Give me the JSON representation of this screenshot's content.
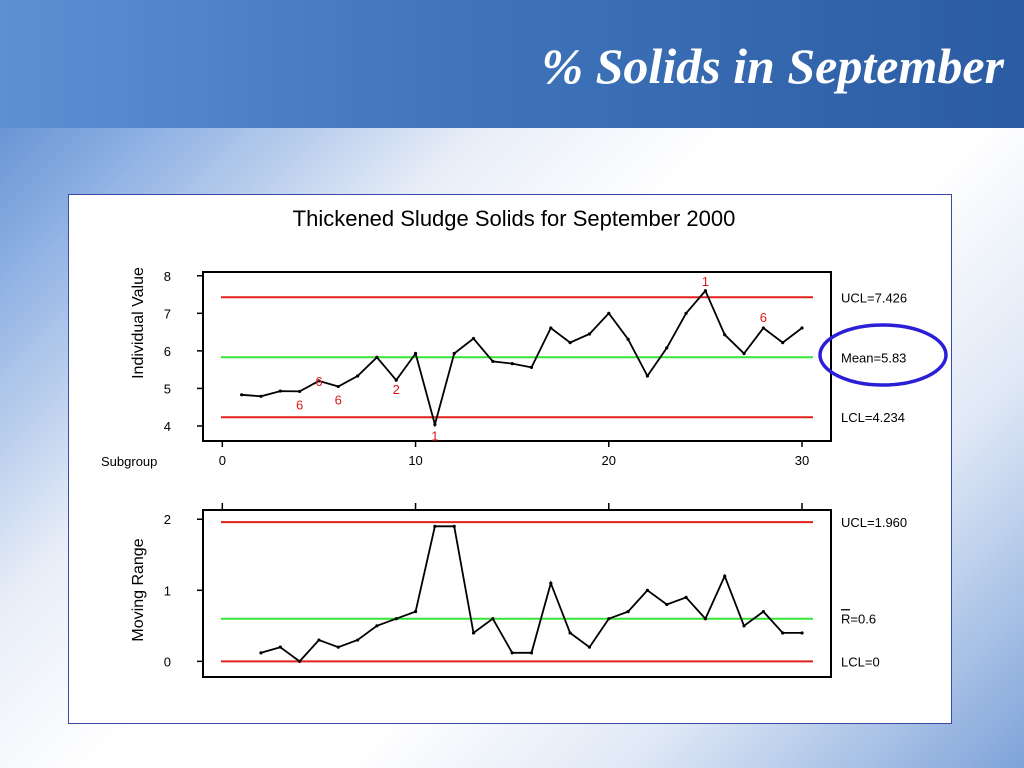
{
  "slide": {
    "title": "% Solids in September"
  },
  "colors": {
    "banner": "#3f74bb",
    "limit_line": "#e0201c",
    "center_line": "#33e633",
    "data_line": "#000000",
    "highlight_circle": "#2a1fd6",
    "flag_text": "#d91a1a"
  },
  "chart_data": [
    {
      "type": "line",
      "title": "Thickened Sludge Solids for September 2000",
      "ylabel": "Individual Value",
      "xlabel": "Subgroup",
      "xlim": [
        -1,
        31.5
      ],
      "ylim": [
        3.6,
        8.1
      ],
      "x_ticks": [
        0,
        10,
        20,
        30
      ],
      "y_ticks": [
        4,
        5,
        6,
        7,
        8
      ],
      "series": [
        {
          "x": [
            1,
            2,
            3,
            4,
            5,
            6,
            7,
            8,
            9,
            10,
            11,
            12,
            13,
            14,
            15,
            16,
            17,
            18,
            19,
            20,
            21,
            22,
            23,
            24,
            25,
            26,
            27,
            28,
            29,
            30
          ],
          "values": [
            4.83,
            4.79,
            4.93,
            4.92,
            5.2,
            5.05,
            5.33,
            5.83,
            5.22,
            5.93,
            4.04,
            5.93,
            6.33,
            5.72,
            5.66,
            5.56,
            6.61,
            6.22,
            6.45,
            7.0,
            6.31,
            5.33,
            6.08,
            7.0,
            7.6,
            6.43,
            5.93,
            6.61,
            6.22,
            6.61
          ]
        }
      ],
      "reference_lines": [
        {
          "label": "UCL=7.426",
          "value": 7.426,
          "color": "red"
        },
        {
          "label": "Mean=5.83",
          "value": 5.83,
          "color": "green"
        },
        {
          "label": "LCL=4.234",
          "value": 4.234,
          "color": "red"
        }
      ],
      "flags": [
        {
          "text": "6",
          "x": 4
        },
        {
          "text": "6",
          "x": 5
        },
        {
          "text": "6",
          "x": 6
        },
        {
          "text": "2",
          "x": 9
        },
        {
          "text": "1",
          "x": 11
        },
        {
          "text": "1",
          "x": 25
        },
        {
          "text": "6",
          "x": 28
        }
      ],
      "highlighted_label": "Mean=5.83"
    },
    {
      "type": "line",
      "ylabel": "Moving Range",
      "xlim": [
        -1,
        31.5
      ],
      "ylim": [
        -0.22,
        2.13
      ],
      "y_ticks": [
        0,
        1,
        2
      ],
      "series": [
        {
          "x": [
            2,
            3,
            4,
            5,
            6,
            7,
            8,
            9,
            10,
            11,
            12,
            13,
            14,
            15,
            16,
            17,
            18,
            19,
            20,
            21,
            22,
            23,
            24,
            25,
            26,
            27,
            28,
            29,
            30
          ],
          "values": [
            0.12,
            0.2,
            0.0,
            0.3,
            0.2,
            0.3,
            0.5,
            0.6,
            0.7,
            1.9,
            1.9,
            0.4,
            0.6,
            0.12,
            0.12,
            1.1,
            0.4,
            0.2,
            0.6,
            0.7,
            1.0,
            0.8,
            0.9,
            0.6,
            1.2,
            0.5,
            0.7,
            0.4,
            0.4
          ]
        }
      ],
      "reference_lines": [
        {
          "label": "UCL=1.960",
          "value": 1.96,
          "color": "red"
        },
        {
          "label": "R=0.6",
          "value": 0.6,
          "color": "green"
        },
        {
          "label": "LCL=0",
          "value": 0,
          "color": "red"
        }
      ]
    }
  ]
}
